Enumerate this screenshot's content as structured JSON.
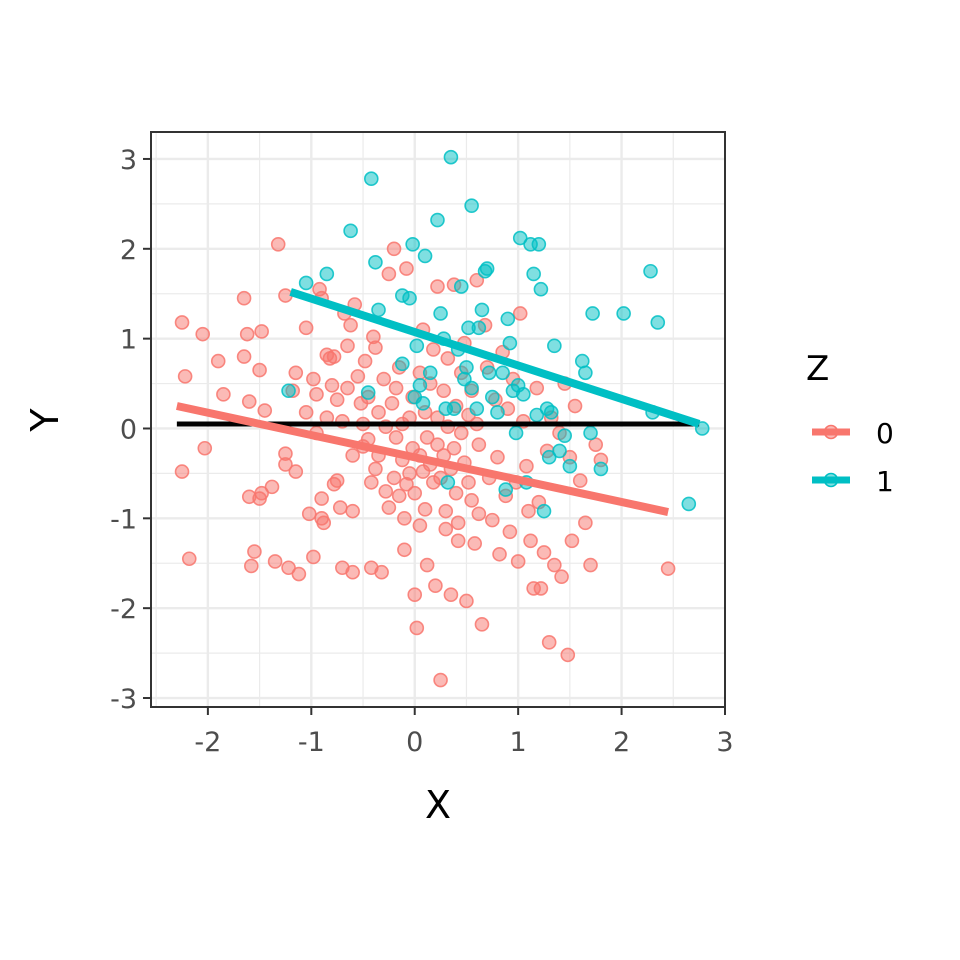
{
  "chart_data": {
    "type": "scatter",
    "xlabel": "X",
    "ylabel": "Y",
    "xlim": [
      -2.55,
      3.0
    ],
    "ylim": [
      -3.1,
      3.3
    ],
    "x_ticks": [
      -2,
      -1,
      0,
      1,
      2,
      3
    ],
    "y_ticks": [
      -3,
      -2,
      -1,
      0,
      1,
      2,
      3
    ],
    "x_tick_labels": [
      "-2",
      "-1",
      "0",
      "1",
      "2",
      "3"
    ],
    "y_tick_labels": [
      "-3",
      "-2",
      "-1",
      "0",
      "1",
      "2",
      "3"
    ],
    "grid": true,
    "legend": {
      "title": "Z",
      "position": "right",
      "entries": [
        {
          "label": "0",
          "color": "#F8766D"
        },
        {
          "label": "1",
          "color": "#00BFC4"
        }
      ]
    },
    "series": [
      {
        "name": "0",
        "color": "#F8766D",
        "points": [
          [
            -2.25,
            1.18
          ],
          [
            -2.22,
            0.58
          ],
          [
            -2.25,
            -0.48
          ],
          [
            -2.18,
            -1.45
          ],
          [
            -2.05,
            1.05
          ],
          [
            -2.03,
            -0.22
          ],
          [
            -1.9,
            0.75
          ],
          [
            -1.85,
            0.38
          ],
          [
            -1.65,
            1.45
          ],
          [
            -1.65,
            0.8
          ],
          [
            -1.62,
            1.05
          ],
          [
            -1.6,
            0.3
          ],
          [
            -1.6,
            -0.76
          ],
          [
            -1.58,
            -1.53
          ],
          [
            -1.55,
            -1.37
          ],
          [
            -1.5,
            0.65
          ],
          [
            -1.48,
            1.08
          ],
          [
            -1.48,
            -0.72
          ],
          [
            -1.5,
            -0.78
          ],
          [
            -1.45,
            0.2
          ],
          [
            -1.38,
            -0.65
          ],
          [
            -1.35,
            -1.48
          ],
          [
            -1.32,
            2.05
          ],
          [
            -1.25,
            1.48
          ],
          [
            -1.25,
            -0.28
          ],
          [
            -1.25,
            -0.4
          ],
          [
            -1.22,
            -1.55
          ],
          [
            -1.18,
            0.42
          ],
          [
            -1.15,
            0.62
          ],
          [
            -1.15,
            -0.48
          ],
          [
            -1.12,
            -1.62
          ],
          [
            -1.05,
            1.12
          ],
          [
            -1.05,
            0.18
          ],
          [
            -1.02,
            -0.95
          ],
          [
            -0.98,
            -1.43
          ],
          [
            -0.98,
            0.55
          ],
          [
            -0.95,
            0.38
          ],
          [
            -0.95,
            -0.05
          ],
          [
            -0.92,
            1.55
          ],
          [
            -0.9,
            1.45
          ],
          [
            -0.9,
            -0.78
          ],
          [
            -0.9,
            -1.0
          ],
          [
            -0.88,
            -1.05
          ],
          [
            -0.85,
            0.82
          ],
          [
            -0.85,
            0.12
          ],
          [
            -0.82,
            0.78
          ],
          [
            -0.8,
            0.48
          ],
          [
            -0.78,
            0.8
          ],
          [
            -0.78,
            -0.62
          ],
          [
            -0.75,
            0.32
          ],
          [
            -0.75,
            -0.58
          ],
          [
            -0.72,
            -0.88
          ],
          [
            -0.7,
            0.08
          ],
          [
            -0.7,
            -1.55
          ],
          [
            -0.68,
            1.28
          ],
          [
            -0.65,
            0.92
          ],
          [
            -0.65,
            0.45
          ],
          [
            -0.62,
            1.15
          ],
          [
            -0.6,
            -0.3
          ],
          [
            -0.6,
            -1.6
          ],
          [
            -0.6,
            -0.92
          ],
          [
            -0.58,
            1.38
          ],
          [
            -0.55,
            0.58
          ],
          [
            -0.52,
            0.28
          ],
          [
            -0.5,
            0.05
          ],
          [
            -0.5,
            -0.2
          ],
          [
            -0.48,
            0.75
          ],
          [
            -0.45,
            0.35
          ],
          [
            -0.45,
            -0.12
          ],
          [
            -0.42,
            -0.6
          ],
          [
            -0.42,
            -1.55
          ],
          [
            -0.4,
            1.02
          ],
          [
            -0.38,
            0.9
          ],
          [
            -0.38,
            -0.45
          ],
          [
            -0.35,
            0.18
          ],
          [
            -0.35,
            -0.3
          ],
          [
            -0.32,
            -1.6
          ],
          [
            -0.3,
            0.55
          ],
          [
            -0.28,
            0.02
          ],
          [
            -0.28,
            -0.7
          ],
          [
            -0.25,
            1.72
          ],
          [
            -0.25,
            -0.88
          ],
          [
            -0.22,
            0.28
          ],
          [
            -0.2,
            2.0
          ],
          [
            -0.2,
            -0.55
          ],
          [
            -0.18,
            0.45
          ],
          [
            -0.18,
            -0.1
          ],
          [
            -0.15,
            0.68
          ],
          [
            -0.15,
            -0.75
          ],
          [
            -0.12,
            0.05
          ],
          [
            -0.12,
            -0.35
          ],
          [
            -0.1,
            -1.0
          ],
          [
            -0.1,
            -1.35
          ],
          [
            -0.08,
            1.78
          ],
          [
            -0.08,
            -0.62
          ],
          [
            -0.05,
            0.12
          ],
          [
            -0.05,
            -0.5
          ],
          [
            -0.02,
            0.35
          ],
          [
            -0.02,
            -0.22
          ],
          [
            0.0,
            -0.72
          ],
          [
            0.0,
            -1.85
          ],
          [
            0.02,
            -2.22
          ],
          [
            0.05,
            0.62
          ],
          [
            0.05,
            -0.3
          ],
          [
            0.05,
            -1.08
          ],
          [
            0.08,
            1.1
          ],
          [
            0.08,
            -0.48
          ],
          [
            0.1,
            0.18
          ],
          [
            0.1,
            -0.9
          ],
          [
            0.12,
            -0.1
          ],
          [
            0.12,
            -1.52
          ],
          [
            0.15,
            0.5
          ],
          [
            0.15,
            -0.4
          ],
          [
            0.18,
            0.88
          ],
          [
            0.18,
            -0.6
          ],
          [
            0.2,
            -1.75
          ],
          [
            0.22,
            1.58
          ],
          [
            0.22,
            0.12
          ],
          [
            0.22,
            -0.18
          ],
          [
            0.25,
            -2.8
          ],
          [
            0.25,
            -0.55
          ],
          [
            0.28,
            0.42
          ],
          [
            0.28,
            -0.3
          ],
          [
            0.3,
            -0.92
          ],
          [
            0.3,
            -1.12
          ],
          [
            0.32,
            0.78
          ],
          [
            0.32,
            0.02
          ],
          [
            0.35,
            -0.45
          ],
          [
            0.35,
            -1.85
          ],
          [
            0.38,
            1.6
          ],
          [
            0.38,
            -0.22
          ],
          [
            0.4,
            0.25
          ],
          [
            0.4,
            -0.72
          ],
          [
            0.42,
            -1.25
          ],
          [
            0.42,
            -1.05
          ],
          [
            0.45,
            0.62
          ],
          [
            0.45,
            -0.05
          ],
          [
            0.48,
            0.95
          ],
          [
            0.48,
            -0.38
          ],
          [
            0.5,
            -1.92
          ],
          [
            0.52,
            0.15
          ],
          [
            0.52,
            -0.6
          ],
          [
            0.55,
            0.42
          ],
          [
            0.55,
            -0.8
          ],
          [
            0.58,
            -1.28
          ],
          [
            0.6,
            1.65
          ],
          [
            0.6,
            0.05
          ],
          [
            0.62,
            -0.18
          ],
          [
            0.62,
            -0.95
          ],
          [
            0.65,
            -2.18
          ],
          [
            0.68,
            1.15
          ],
          [
            0.7,
            0.68
          ],
          [
            0.72,
            -0.55
          ],
          [
            0.75,
            -1.02
          ],
          [
            0.78,
            0.32
          ],
          [
            0.8,
            -0.32
          ],
          [
            0.82,
            -1.4
          ],
          [
            0.85,
            0.85
          ],
          [
            0.88,
            -0.75
          ],
          [
            0.9,
            0.22
          ],
          [
            0.92,
            -1.15
          ],
          [
            0.95,
            0.55
          ],
          [
            0.98,
            -0.6
          ],
          [
            1.0,
            -1.48
          ],
          [
            1.02,
            1.28
          ],
          [
            1.05,
            0.08
          ],
          [
            1.08,
            -0.42
          ],
          [
            1.1,
            -0.92
          ],
          [
            1.12,
            -1.25
          ],
          [
            1.15,
            -1.78
          ],
          [
            1.18,
            0.45
          ],
          [
            1.2,
            -0.82
          ],
          [
            1.22,
            -1.78
          ],
          [
            1.25,
            -1.38
          ],
          [
            1.28,
            -0.25
          ],
          [
            1.3,
            -2.38
          ],
          [
            1.32,
            0.12
          ],
          [
            1.35,
            -1.52
          ],
          [
            1.4,
            -0.05
          ],
          [
            1.42,
            -1.65
          ],
          [
            1.45,
            0.5
          ],
          [
            1.48,
            -2.52
          ],
          [
            1.5,
            -0.32
          ],
          [
            1.52,
            -1.25
          ],
          [
            1.55,
            0.25
          ],
          [
            1.6,
            -0.58
          ],
          [
            1.65,
            -1.05
          ],
          [
            1.7,
            -1.52
          ],
          [
            1.75,
            -0.18
          ],
          [
            1.8,
            -0.35
          ],
          [
            2.45,
            -1.56
          ]
        ],
        "trend": {
          "x": [
            -2.3,
            2.45
          ],
          "y": [
            0.25,
            -0.93
          ]
        }
      },
      {
        "name": "1",
        "color": "#00BFC4",
        "points": [
          [
            -1.22,
            0.42
          ],
          [
            -1.05,
            1.62
          ],
          [
            -0.85,
            1.72
          ],
          [
            -0.62,
            2.2
          ],
          [
            -0.45,
            0.4
          ],
          [
            -0.42,
            2.78
          ],
          [
            -0.38,
            1.85
          ],
          [
            -0.35,
            1.32
          ],
          [
            -0.12,
            1.48
          ],
          [
            -0.12,
            0.72
          ],
          [
            -0.05,
            1.45
          ],
          [
            -0.02,
            2.05
          ],
          [
            0.0,
            0.35
          ],
          [
            0.02,
            0.92
          ],
          [
            0.05,
            0.48
          ],
          [
            0.08,
            0.28
          ],
          [
            0.1,
            1.92
          ],
          [
            0.15,
            0.62
          ],
          [
            0.22,
            2.32
          ],
          [
            0.25,
            1.28
          ],
          [
            0.28,
            1.0
          ],
          [
            0.3,
            0.22
          ],
          [
            0.32,
            -0.6
          ],
          [
            0.35,
            3.02
          ],
          [
            0.38,
            0.22
          ],
          [
            0.42,
            0.88
          ],
          [
            0.45,
            1.58
          ],
          [
            0.48,
            0.55
          ],
          [
            0.5,
            0.68
          ],
          [
            0.52,
            1.12
          ],
          [
            0.55,
            0.45
          ],
          [
            0.55,
            2.48
          ],
          [
            0.6,
            0.22
          ],
          [
            0.62,
            1.12
          ],
          [
            0.65,
            1.32
          ],
          [
            0.68,
            1.75
          ],
          [
            0.7,
            1.78
          ],
          [
            0.72,
            0.62
          ],
          [
            0.75,
            0.35
          ],
          [
            0.8,
            0.18
          ],
          [
            0.85,
            0.62
          ],
          [
            0.88,
            -0.68
          ],
          [
            0.9,
            1.22
          ],
          [
            0.92,
            0.95
          ],
          [
            0.95,
            0.42
          ],
          [
            0.98,
            -0.05
          ],
          [
            1.0,
            0.48
          ],
          [
            1.02,
            2.12
          ],
          [
            1.05,
            0.38
          ],
          [
            1.08,
            -0.6
          ],
          [
            1.12,
            2.05
          ],
          [
            1.15,
            1.72
          ],
          [
            1.18,
            0.15
          ],
          [
            1.2,
            2.05
          ],
          [
            1.22,
            1.55
          ],
          [
            1.25,
            -0.92
          ],
          [
            1.28,
            0.22
          ],
          [
            1.3,
            -0.32
          ],
          [
            1.32,
            0.18
          ],
          [
            1.35,
            0.92
          ],
          [
            1.4,
            -0.25
          ],
          [
            1.45,
            -0.08
          ],
          [
            1.5,
            -0.42
          ],
          [
            1.62,
            0.75
          ],
          [
            1.65,
            0.62
          ],
          [
            1.7,
            -0.05
          ],
          [
            1.72,
            1.28
          ],
          [
            1.8,
            -0.45
          ],
          [
            2.02,
            1.28
          ],
          [
            2.28,
            1.75
          ],
          [
            2.3,
            0.18
          ],
          [
            2.35,
            1.18
          ],
          [
            2.65,
            -0.84
          ],
          [
            2.78,
            0.0
          ]
        ],
        "trend": {
          "x": [
            -1.2,
            2.75
          ],
          "y": [
            1.52,
            0.05
          ]
        }
      }
    ],
    "overall_trend": {
      "x": [
        -2.3,
        2.75
      ],
      "y": [
        0.05,
        0.05
      ],
      "color": "#000000"
    }
  }
}
